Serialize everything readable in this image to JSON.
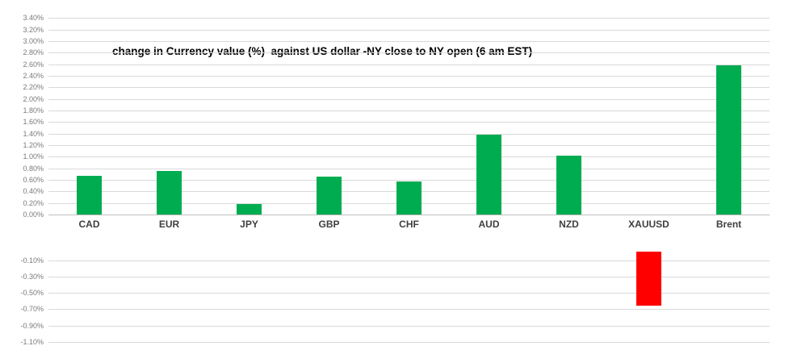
{
  "chart_data": {
    "type": "bar",
    "title": "change in Currency value (%)  against US dollar -NY close to NY open (6 am EST)",
    "xlabel": "",
    "ylabel": "",
    "categories": [
      "CAD",
      "EUR",
      "JPY",
      "GBP",
      "CHF",
      "AUD",
      "NZD",
      "XAUUSD",
      "Brent"
    ],
    "values": [
      0.67,
      0.76,
      0.18,
      0.66,
      0.57,
      1.38,
      1.02,
      -0.66,
      2.58
    ],
    "unit": "%",
    "y_ticks_positive": [
      "3.40%",
      "3.20%",
      "3.00%",
      "2.80%",
      "2.60%",
      "2.40%",
      "2.20%",
      "2.00%",
      "1.80%",
      "1.60%",
      "1.40%",
      "1.20%",
      "1.00%",
      "0.80%",
      "0.60%",
      "0.40%",
      "0.20%",
      "0.00%"
    ],
    "y_ticks_negative": [
      "-0.10%",
      "-0.30%",
      "-0.50%",
      "-0.70%",
      "-0.90%",
      "-1.10%"
    ],
    "ylim": [
      -1.1,
      3.4
    ],
    "grid": true,
    "legend": false,
    "colors": {
      "positive_bar": "#00ac50",
      "negative_bar": "#ff0000",
      "gridline": "#d9d9d9",
      "zero_line": "#bfbfbf",
      "tick_label": "#7a7a7a",
      "category_label": "#3f3f3f",
      "title": "#000000",
      "background": "#ffffff"
    }
  }
}
